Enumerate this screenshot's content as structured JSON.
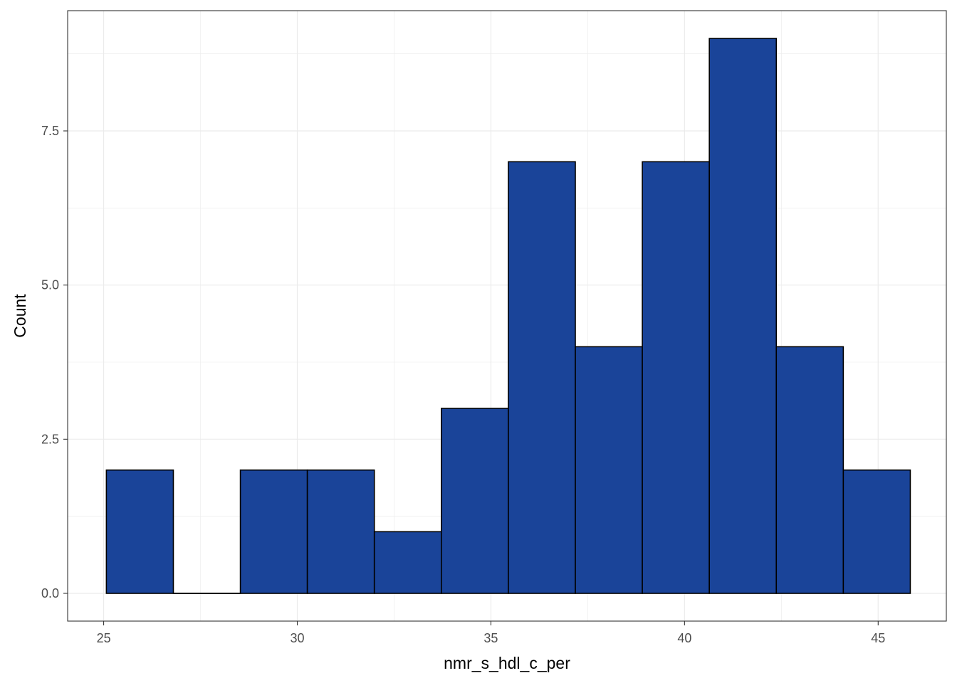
{
  "chart_data": {
    "type": "bar",
    "subtype": "histogram",
    "xlabel": "nmr_s_hdl_c_per",
    "ylabel": "Count",
    "xlim": [
      24.07,
      46.76
    ],
    "ylim": [
      -0.45,
      9.45
    ],
    "x_ticks": [
      25,
      30,
      35,
      40,
      45
    ],
    "x_tick_labels": [
      "25",
      "30",
      "35",
      "40",
      "45"
    ],
    "y_ticks": [
      0,
      2.5,
      5,
      7.5
    ],
    "y_tick_labels": [
      "0.0",
      "2.5",
      "5.0",
      "7.5"
    ],
    "bin_edges": [
      25.07,
      26.8,
      28.53,
      30.26,
      31.99,
      33.72,
      35.45,
      37.18,
      38.91,
      40.64,
      42.37,
      44.1,
      45.83
    ],
    "counts": [
      2,
      0,
      2,
      2,
      1,
      3,
      7,
      4,
      7,
      9,
      4,
      2
    ],
    "grid": true,
    "colors": {
      "fill": "#1a4499",
      "outline": "#000000",
      "grid": "#ebebeb",
      "panel_border": "#333333",
      "tick_text": "#4d4d4d"
    }
  }
}
